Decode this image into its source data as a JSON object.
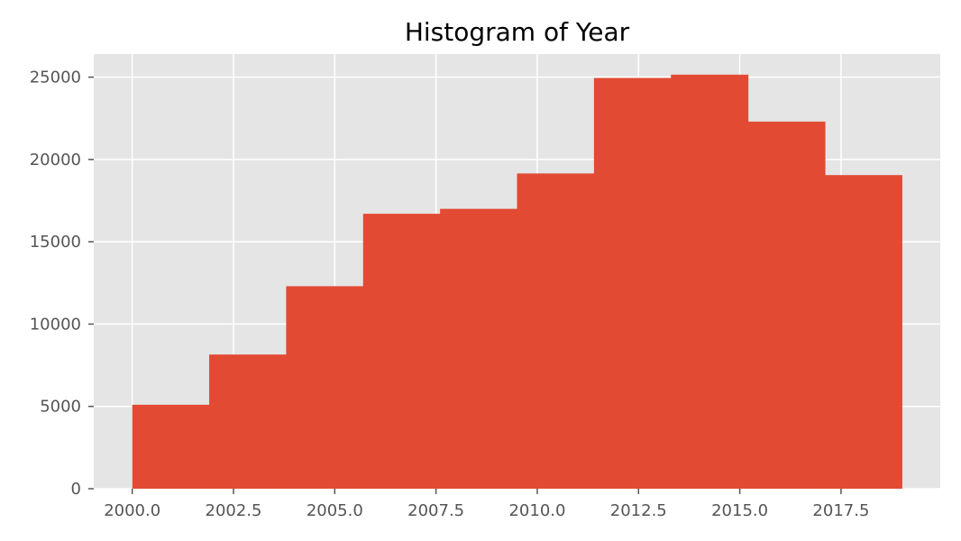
{
  "chart_data": {
    "type": "bar",
    "title": "Histogram of Year",
    "xlabel": "",
    "ylabel": "",
    "xlim": [
      1999.05,
      2019.95
    ],
    "ylim": [
      0,
      26400
    ],
    "grid": true,
    "bins": [
      {
        "start": 2000.0,
        "end": 2001.9,
        "value": 5100
      },
      {
        "start": 2001.9,
        "end": 2003.8,
        "value": 8150
      },
      {
        "start": 2003.8,
        "end": 2005.7,
        "value": 12300
      },
      {
        "start": 2005.7,
        "end": 2007.6,
        "value": 16700
      },
      {
        "start": 2007.6,
        "end": 2009.5,
        "value": 17000
      },
      {
        "start": 2009.5,
        "end": 2011.4,
        "value": 19150
      },
      {
        "start": 2011.4,
        "end": 2013.3,
        "value": 24950
      },
      {
        "start": 2013.3,
        "end": 2015.2,
        "value": 25150
      },
      {
        "start": 2015.2,
        "end": 2017.1,
        "value": 22300
      },
      {
        "start": 2017.1,
        "end": 2019.0,
        "value": 19050
      }
    ],
    "xticks": [
      {
        "value": 2000.0,
        "label": "2000.0"
      },
      {
        "value": 2002.5,
        "label": "2002.5"
      },
      {
        "value": 2005.0,
        "label": "2005.0"
      },
      {
        "value": 2007.5,
        "label": "2007.5"
      },
      {
        "value": 2010.0,
        "label": "2010.0"
      },
      {
        "value": 2012.5,
        "label": "2012.5"
      },
      {
        "value": 2015.0,
        "label": "2015.0"
      },
      {
        "value": 2017.5,
        "label": "2017.5"
      }
    ],
    "yticks": [
      {
        "value": 0,
        "label": "0"
      },
      {
        "value": 5000,
        "label": "5000"
      },
      {
        "value": 10000,
        "label": "10000"
      },
      {
        "value": 15000,
        "label": "15000"
      },
      {
        "value": 20000,
        "label": "20000"
      },
      {
        "value": 25000,
        "label": "25000"
      }
    ],
    "colors": {
      "bar": "#E24A33",
      "plot_background": "#E5E5E5",
      "grid": "#FFFFFF",
      "tick": "#555555",
      "title": "#000000"
    }
  }
}
